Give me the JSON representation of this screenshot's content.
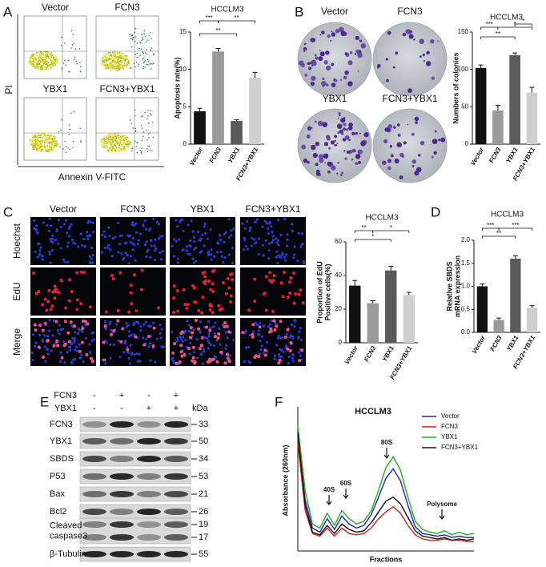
{
  "figure": {
    "panel_labels": [
      "A",
      "B",
      "C",
      "D",
      "E",
      "F"
    ],
    "flow": {
      "groups": [
        "Vector",
        "FCN3",
        "YBX1",
        "FCN3+YBX1"
      ],
      "y_label": "PI",
      "x_label": "Annexin V-FITC"
    },
    "colony": {
      "groups": [
        "Vector",
        "FCN3",
        "YBX1",
        "FCN3+YBX1"
      ]
    },
    "edu": {
      "groups": [
        "Vector",
        "FCN3",
        "YBX1",
        "FCN3+YBX1"
      ],
      "rows": [
        "Hoechst",
        "EdU",
        "Merge"
      ]
    },
    "western": {
      "treatments": [
        {
          "name": "FCN3",
          "signs": [
            "-",
            "+",
            "-",
            "+"
          ]
        },
        {
          "name": "YBX1",
          "signs": [
            "-",
            "-",
            "+",
            "+"
          ]
        }
      ],
      "unit": "kDa",
      "proteins": [
        {
          "lines": [
            "FCN3"
          ],
          "kda": [
            33
          ]
        },
        {
          "lines": [
            "YBX1"
          ],
          "kda": [
            50
          ]
        },
        {
          "lines": [
            "SBDS"
          ],
          "kda": [
            34
          ]
        },
        {
          "lines": [
            "P53"
          ],
          "kda": [
            53
          ]
        },
        {
          "lines": [
            "Bax"
          ],
          "kda": [
            21
          ]
        },
        {
          "lines": [
            "Bcl2"
          ],
          "kda": [
            26
          ]
        },
        {
          "lines": [
            "Cleaved",
            "caspase3"
          ],
          "kda": [
            19,
            17
          ]
        },
        {
          "lines": [
            "β-Tubulin"
          ],
          "kda": [
            55
          ]
        }
      ]
    }
  },
  "chart_data": [
    {
      "type": "bar",
      "title": "HCCLM3",
      "y_label": [
        "Apoptosis rate(%)"
      ],
      "categories": [
        "Vector",
        "FCN3",
        "YBX1",
        "FCN3+YBX1"
      ],
      "values": [
        4.4,
        12.4,
        3.1,
        8.9
      ],
      "errors": [
        0.4,
        0.4,
        0.15,
        0.7
      ],
      "colors": [
        "#111111",
        "#9a9a9a",
        "#5a5a5a",
        "#cfcfcf"
      ],
      "ylim": [
        0,
        15
      ],
      "yticks": [
        0,
        5,
        10,
        15
      ],
      "significance": [
        "***",
        "**",
        "**"
      ]
    },
    {
      "type": "bar",
      "title": "HCCLM3",
      "y_label": [
        "Numbers of colonies"
      ],
      "categories": [
        "Vector",
        "FCN3",
        "YBX1",
        "FCN3+YBX1"
      ],
      "values": [
        102,
        45,
        119,
        69
      ],
      "errors": [
        4,
        7,
        3,
        7
      ],
      "colors": [
        "#111111",
        "#9a9a9a",
        "#5a5a5a",
        "#cfcfcf"
      ],
      "ylim": [
        0,
        150
      ],
      "yticks": [
        0,
        50,
        100,
        150
      ],
      "significance": [
        "***",
        "*",
        "**",
        "*"
      ]
    },
    {
      "type": "bar",
      "title": "HCCLM3",
      "y_label": [
        "Proportion of EdU",
        "Positive cells(%)"
      ],
      "categories": [
        "Vector",
        "FCN3",
        "YBX1",
        "FCN3+YBX1"
      ],
      "values": [
        34,
        23.5,
        43,
        28.5
      ],
      "errors": [
        3,
        1.5,
        2.5,
        1.5
      ],
      "colors": [
        "#111111",
        "#9a9a9a",
        "#5a5a5a",
        "#cfcfcf"
      ],
      "ylim": [
        0,
        60
      ],
      "yticks": [
        0,
        20,
        40,
        60
      ],
      "significance": [
        "**",
        "*",
        "*"
      ]
    },
    {
      "type": "bar",
      "title": "HCCLM3",
      "y_label": [
        "Relative SBDS",
        "mRNA expression"
      ],
      "categories": [
        "Vector",
        "FCN3",
        "YBX1",
        "FCN3+YBX1"
      ],
      "values": [
        1.0,
        0.27,
        1.6,
        0.54
      ],
      "errors": [
        0.05,
        0.04,
        0.06,
        0.04
      ],
      "colors": [
        "#111111",
        "#9a9a9a",
        "#5a5a5a",
        "#cfcfcf"
      ],
      "ylim": [
        0,
        2
      ],
      "yticks": [
        {
          "value": 0,
          "label": "0.0"
        },
        0.5,
        {
          "value": 1,
          "label": "1.0"
        },
        1.5,
        {
          "value": 2,
          "label": "2.0"
        }
      ],
      "significance": [
        "***",
        "**",
        "***"
      ]
    },
    {
      "type": "line",
      "title": "HCCLM3",
      "x_label": "Fractions",
      "y_label": "Absorbance (260nm)",
      "x": [
        0,
        1,
        2,
        3,
        4,
        5,
        6,
        7,
        8,
        9,
        10,
        11,
        12,
        13,
        14,
        15,
        16,
        17,
        18,
        19,
        20,
        21,
        22,
        23,
        24
      ],
      "xlim": [
        0,
        24
      ],
      "ylim": [
        0,
        100
      ],
      "series": [
        {
          "name": "Vector",
          "color": "#2020c0",
          "values": [
            85,
            38,
            17,
            14,
            24,
            16,
            26,
            20,
            17,
            19,
            27,
            40,
            54,
            61,
            52,
            34,
            18,
            13,
            12,
            11,
            12,
            10,
            11,
            10,
            10
          ]
        },
        {
          "name": "FCN3",
          "color": "#d02020",
          "values": [
            80,
            30,
            13,
            11,
            17,
            11,
            17,
            13,
            12,
            13,
            17,
            24,
            29,
            33,
            28,
            19,
            12,
            9,
            8,
            8,
            9,
            8,
            8,
            7,
            7
          ]
        },
        {
          "name": "YBX1",
          "color": "#20b020",
          "values": [
            93,
            45,
            20,
            17,
            28,
            19,
            30,
            24,
            20,
            22,
            30,
            45,
            62,
            70,
            60,
            40,
            22,
            16,
            14,
            13,
            15,
            12,
            14,
            12,
            13
          ]
        },
        {
          "name": "FCN3+YBX1",
          "color": "#111111",
          "values": [
            88,
            34,
            14,
            12,
            19,
            13,
            20,
            16,
            14,
            15,
            21,
            29,
            37,
            40,
            35,
            25,
            15,
            11,
            10,
            9,
            10,
            8,
            9,
            8,
            9
          ]
        }
      ],
      "annotations": [
        "40S",
        "60S",
        "80S",
        "Polysome"
      ]
    }
  ]
}
